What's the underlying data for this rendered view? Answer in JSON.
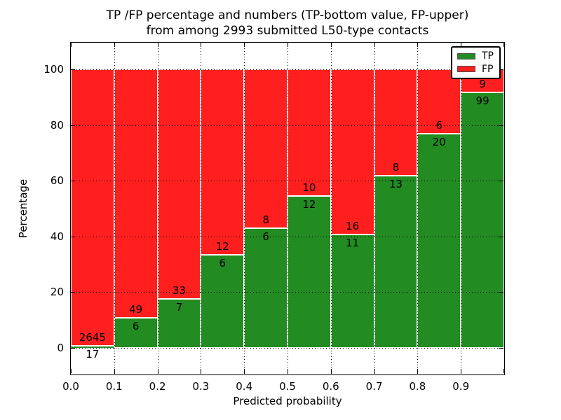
{
  "chart_data": {
    "type": "bar",
    "stacked": true,
    "title_line1": "TP /FP percentage and numbers (TP-bottom value, FP-upper)",
    "title_line2": "from among 2993 submitted L50-type contacts",
    "xlabel": "Predicted probability",
    "ylabel": "Percentage",
    "x_tick_labels": [
      "0.0",
      "0.1",
      "0.2",
      "0.3",
      "0.4",
      "0.5",
      "0.6",
      "0.7",
      "0.8",
      "0.9"
    ],
    "y_ticks": [
      0,
      20,
      40,
      60,
      80,
      100
    ],
    "xlim": [
      0.0,
      1.0
    ],
    "ylim": [
      -9.5,
      109.8
    ],
    "grid": "dotted",
    "bar_unit": "percent of bin total, stacked to 100",
    "bins": [
      {
        "x0": 0.0,
        "x1": 0.1,
        "tp": 17,
        "fp": 2645
      },
      {
        "x0": 0.1,
        "x1": 0.2,
        "tp": 6,
        "fp": 49
      },
      {
        "x0": 0.2,
        "x1": 0.3,
        "tp": 7,
        "fp": 33
      },
      {
        "x0": 0.3,
        "x1": 0.4,
        "tp": 6,
        "fp": 12
      },
      {
        "x0": 0.4,
        "x1": 0.5,
        "tp": 6,
        "fp": 8
      },
      {
        "x0": 0.5,
        "x1": 0.6,
        "tp": 12,
        "fp": 10
      },
      {
        "x0": 0.6,
        "x1": 0.7,
        "tp": 11,
        "fp": 16
      },
      {
        "x0": 0.7,
        "x1": 0.8,
        "tp": 13,
        "fp": 8
      },
      {
        "x0": 0.8,
        "x1": 0.9,
        "tp": 20,
        "fp": 6
      },
      {
        "x0": 0.9,
        "x1": 1.0,
        "tp": 99,
        "fp": 9
      }
    ],
    "legend": {
      "position": "upper right",
      "entries": [
        {
          "label": "TP",
          "color": "#228b22"
        },
        {
          "label": "FP",
          "color": "#ff1f1f"
        }
      ]
    },
    "colors": {
      "tp": "#228b22",
      "fp": "#ff1f1f",
      "grid": "#000000",
      "frame": "#000000"
    }
  }
}
